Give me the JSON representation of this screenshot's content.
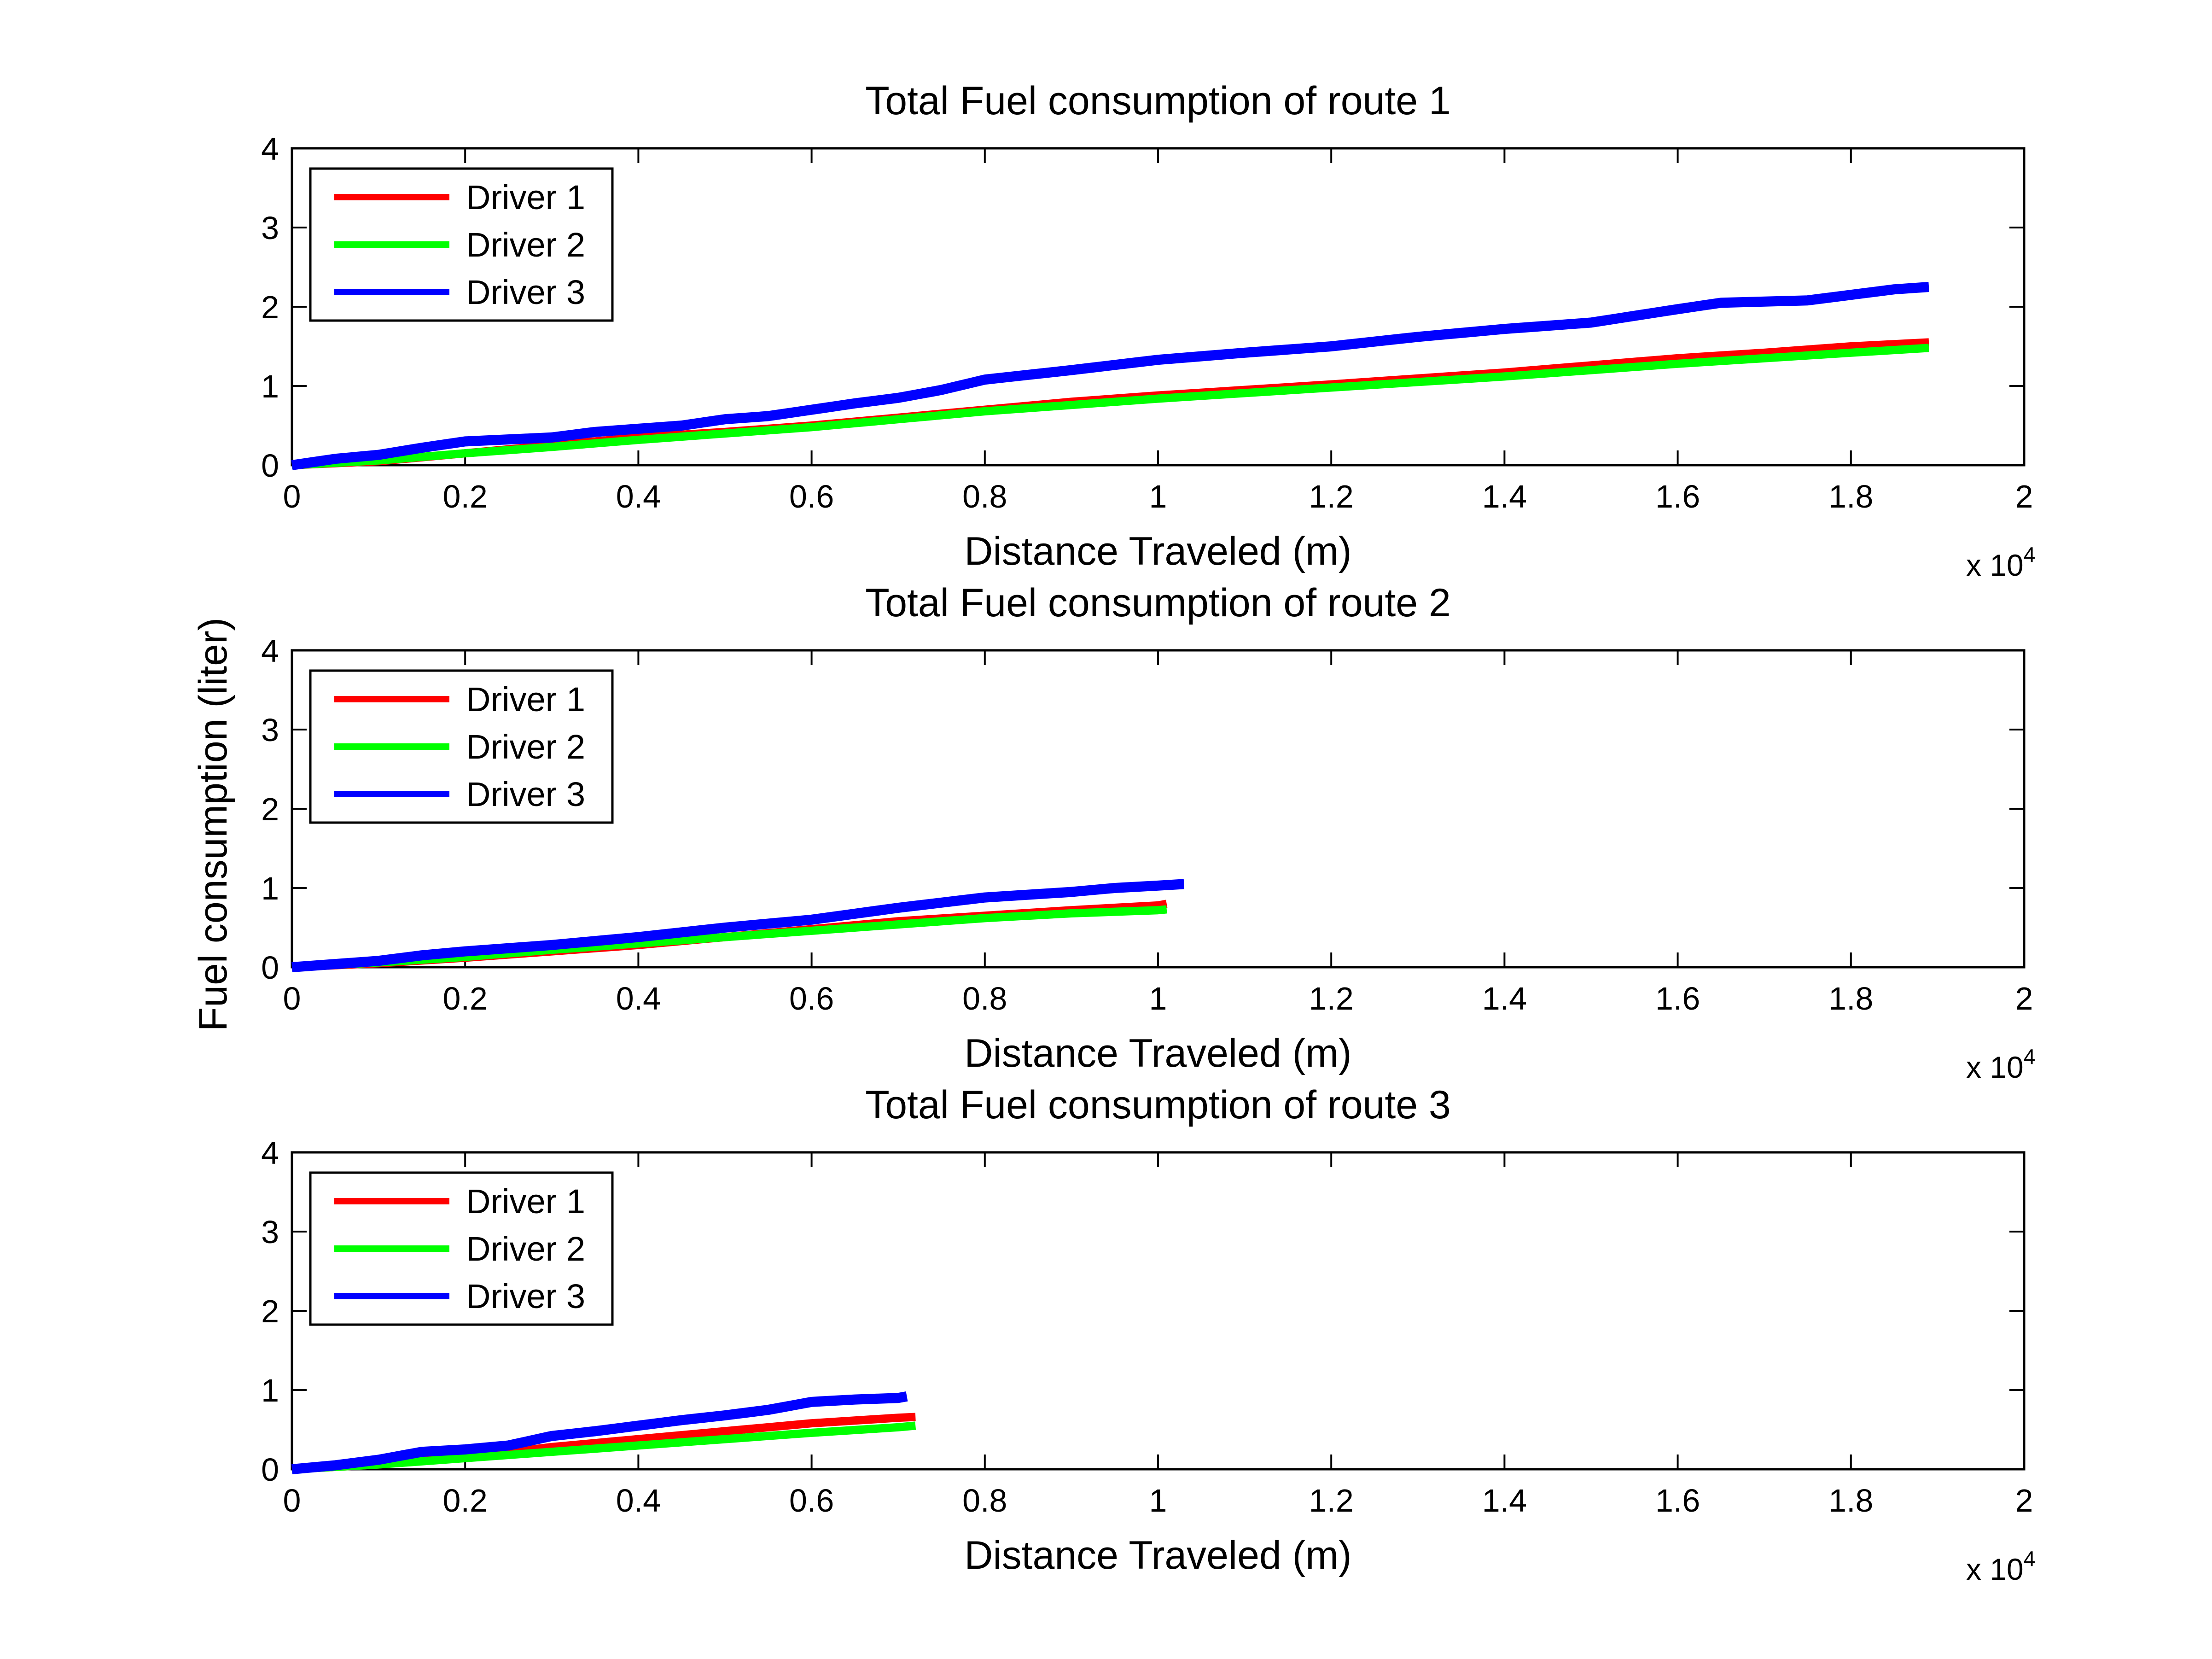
{
  "figure": {
    "ylabel": "Fuel consumption (liter)",
    "colors": {
      "driver1": "#ff0000",
      "driver2": "#00ff00",
      "driver3": "#0000ff"
    }
  },
  "chart_data": [
    {
      "type": "line",
      "title": "Total Fuel consumption of route 1",
      "xlabel": "Distance Traveled (m)",
      "ylabel": "Fuel consumption (liter)",
      "x_multiplier": "x 10",
      "x_multiplier_exp": "4",
      "xlim": [
        0,
        20000
      ],
      "ylim": [
        0,
        4
      ],
      "xticks": [
        "0",
        "0.2",
        "0.4",
        "0.6",
        "0.8",
        "1",
        "1.2",
        "1.4",
        "1.6",
        "1.8",
        "2"
      ],
      "yticks": [
        "0",
        "1",
        "2",
        "3",
        "4"
      ],
      "grid": false,
      "legend_position": "top-left",
      "series": [
        {
          "name": "Driver 1",
          "color": "#ff0000",
          "points": [
            [
              0,
              0
            ],
            [
              1000,
              0.05
            ],
            [
              2000,
              0.15
            ],
            [
              3000,
              0.25
            ],
            [
              4000,
              0.35
            ],
            [
              5000,
              0.42
            ],
            [
              6000,
              0.5
            ],
            [
              7000,
              0.6
            ],
            [
              8000,
              0.7
            ],
            [
              9000,
              0.8
            ],
            [
              10000,
              0.88
            ],
            [
              12000,
              1.02
            ],
            [
              14000,
              1.17
            ],
            [
              16000,
              1.35
            ],
            [
              17000,
              1.42
            ],
            [
              18000,
              1.5
            ],
            [
              18900,
              1.55
            ]
          ]
        },
        {
          "name": "Driver 2",
          "color": "#00ff00",
          "points": [
            [
              0,
              0
            ],
            [
              1000,
              0.06
            ],
            [
              2000,
              0.15
            ],
            [
              3000,
              0.23
            ],
            [
              4000,
              0.32
            ],
            [
              5000,
              0.4
            ],
            [
              6000,
              0.48
            ],
            [
              7000,
              0.58
            ],
            [
              8000,
              0.68
            ],
            [
              9000,
              0.76
            ],
            [
              10000,
              0.84
            ],
            [
              12000,
              0.98
            ],
            [
              14000,
              1.12
            ],
            [
              16000,
              1.28
            ],
            [
              17000,
              1.35
            ],
            [
              18000,
              1.42
            ],
            [
              18900,
              1.48
            ]
          ]
        },
        {
          "name": "Driver 3",
          "color": "#0000ff",
          "points": [
            [
              0,
              0
            ],
            [
              500,
              0.08
            ],
            [
              1000,
              0.13
            ],
            [
              1500,
              0.22
            ],
            [
              2000,
              0.3
            ],
            [
              3000,
              0.35
            ],
            [
              3500,
              0.42
            ],
            [
              4000,
              0.46
            ],
            [
              4500,
              0.5
            ],
            [
              5000,
              0.58
            ],
            [
              5500,
              0.62
            ],
            [
              6000,
              0.7
            ],
            [
              6500,
              0.78
            ],
            [
              7000,
              0.85
            ],
            [
              7500,
              0.95
            ],
            [
              8000,
              1.08
            ],
            [
              9000,
              1.2
            ],
            [
              10000,
              1.33
            ],
            [
              11000,
              1.42
            ],
            [
              12000,
              1.5
            ],
            [
              13000,
              1.62
            ],
            [
              14000,
              1.72
            ],
            [
              15000,
              1.8
            ],
            [
              16000,
              1.97
            ],
            [
              16500,
              2.05
            ],
            [
              17500,
              2.08
            ],
            [
              18000,
              2.15
            ],
            [
              18500,
              2.22
            ],
            [
              18900,
              2.25
            ]
          ]
        }
      ]
    },
    {
      "type": "line",
      "title": "Total Fuel consumption of route 2",
      "xlabel": "Distance Traveled (m)",
      "ylabel": "Fuel consumption (liter)",
      "x_multiplier": "x 10",
      "x_multiplier_exp": "4",
      "xlim": [
        0,
        20000
      ],
      "ylim": [
        0,
        4
      ],
      "xticks": [
        "0",
        "0.2",
        "0.4",
        "0.6",
        "0.8",
        "1",
        "1.2",
        "1.4",
        "1.6",
        "1.8",
        "2"
      ],
      "yticks": [
        "0",
        "1",
        "2",
        "3",
        "4"
      ],
      "grid": false,
      "legend_position": "top-left",
      "series": [
        {
          "name": "Driver 1",
          "color": "#ff0000",
          "points": [
            [
              0,
              0
            ],
            [
              1000,
              0.05
            ],
            [
              2000,
              0.12
            ],
            [
              3000,
              0.2
            ],
            [
              4000,
              0.28
            ],
            [
              5000,
              0.38
            ],
            [
              6000,
              0.48
            ],
            [
              7000,
              0.58
            ],
            [
              8000,
              0.65
            ],
            [
              9000,
              0.72
            ],
            [
              10000,
              0.78
            ],
            [
              10100,
              0.8
            ]
          ]
        },
        {
          "name": "Driver 2",
          "color": "#00ff00",
          "points": [
            [
              0,
              0
            ],
            [
              1000,
              0.06
            ],
            [
              2000,
              0.13
            ],
            [
              3000,
              0.22
            ],
            [
              4000,
              0.3
            ],
            [
              5000,
              0.38
            ],
            [
              6000,
              0.46
            ],
            [
              7000,
              0.54
            ],
            [
              8000,
              0.62
            ],
            [
              9000,
              0.68
            ],
            [
              10000,
              0.72
            ],
            [
              10100,
              0.73
            ]
          ]
        },
        {
          "name": "Driver 3",
          "color": "#0000ff",
          "points": [
            [
              0,
              0
            ],
            [
              1000,
              0.08
            ],
            [
              1500,
              0.15
            ],
            [
              2000,
              0.2
            ],
            [
              3000,
              0.28
            ],
            [
              4000,
              0.38
            ],
            [
              5000,
              0.5
            ],
            [
              6000,
              0.6
            ],
            [
              7000,
              0.75
            ],
            [
              8000,
              0.88
            ],
            [
              9000,
              0.95
            ],
            [
              9500,
              1.0
            ],
            [
              10000,
              1.03
            ],
            [
              10300,
              1.05
            ]
          ]
        }
      ]
    },
    {
      "type": "line",
      "title": "Total Fuel consumption of route 3",
      "xlabel": "Distance Traveled (m)",
      "ylabel": "Fuel consumption (liter)",
      "x_multiplier": "x 10",
      "x_multiplier_exp": "4",
      "xlim": [
        0,
        20000
      ],
      "ylim": [
        0,
        4
      ],
      "xticks": [
        "0",
        "0.2",
        "0.4",
        "0.6",
        "0.8",
        "1",
        "1.2",
        "1.4",
        "1.6",
        "1.8",
        "2"
      ],
      "yticks": [
        "0",
        "1",
        "2",
        "3",
        "4"
      ],
      "grid": false,
      "legend_position": "top-left",
      "series": [
        {
          "name": "Driver 1",
          "color": "#ff0000",
          "points": [
            [
              0,
              0
            ],
            [
              1000,
              0.06
            ],
            [
              2000,
              0.15
            ],
            [
              3000,
              0.28
            ],
            [
              4000,
              0.38
            ],
            [
              5000,
              0.48
            ],
            [
              6000,
              0.58
            ],
            [
              7000,
              0.65
            ],
            [
              7200,
              0.66
            ]
          ]
        },
        {
          "name": "Driver 2",
          "color": "#00ff00",
          "points": [
            [
              0,
              0
            ],
            [
              1000,
              0.06
            ],
            [
              2000,
              0.14
            ],
            [
              3000,
              0.22
            ],
            [
              4000,
              0.3
            ],
            [
              5000,
              0.38
            ],
            [
              6000,
              0.46
            ],
            [
              7000,
              0.53
            ],
            [
              7200,
              0.55
            ]
          ]
        },
        {
          "name": "Driver 3",
          "color": "#0000ff",
          "points": [
            [
              0,
              0
            ],
            [
              500,
              0.05
            ],
            [
              1000,
              0.12
            ],
            [
              1500,
              0.22
            ],
            [
              2000,
              0.25
            ],
            [
              2500,
              0.3
            ],
            [
              3000,
              0.42
            ],
            [
              3500,
              0.48
            ],
            [
              4000,
              0.55
            ],
            [
              4500,
              0.62
            ],
            [
              5000,
              0.68
            ],
            [
              5500,
              0.75
            ],
            [
              6000,
              0.85
            ],
            [
              6500,
              0.88
            ],
            [
              7000,
              0.9
            ],
            [
              7100,
              0.92
            ]
          ]
        }
      ]
    }
  ]
}
